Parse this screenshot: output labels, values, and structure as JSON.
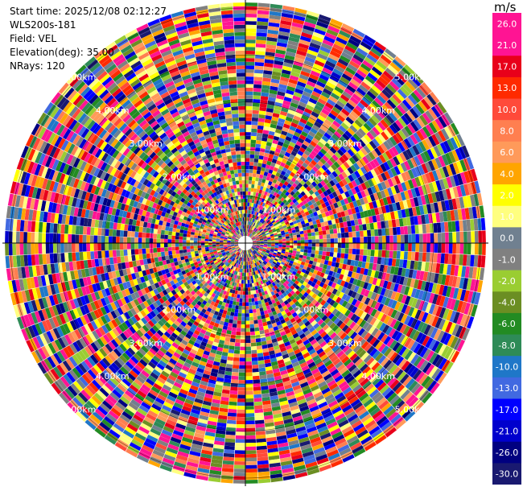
{
  "header": {
    "start_time": "Start time: 2025/12/08 02:12:27",
    "instrument": "WLS200s-181",
    "field": "Field: VEL",
    "elevation": "Elevation(deg): 35.00",
    "nrays": "NRays: 120"
  },
  "colorbar": {
    "unit": "m/s",
    "ticks": [
      "26.0",
      "21.0",
      "17.0",
      "13.0",
      "10.0",
      "8.0",
      "6.0",
      "4.0",
      "2.0",
      "1.0",
      "0.0",
      "-1.0",
      "-2.0",
      "-4.0",
      "-6.0",
      "-8.0",
      "-10.0",
      "-13.0",
      "-17.0",
      "-21.0",
      "-26.0",
      "-30.0"
    ],
    "colors": [
      "#ff1493",
      "#ff1493",
      "#e8001a",
      "#ff2a00",
      "#ff4a3a",
      "#ff7f50",
      "#ff9a5a",
      "#ffa500",
      "#ffff00",
      "#ffff7f",
      "#708090",
      "#808080",
      "#9acd32",
      "#6b8e23",
      "#228b22",
      "#2e8b57",
      "#1f77c8",
      "#4169e1",
      "#0000ff",
      "#0000cd",
      "#000080",
      "#191970"
    ]
  },
  "chart_data": {
    "type": "heatmap",
    "projection": "polar-ppi",
    "field": "VEL",
    "elevation_deg": 35.0,
    "nrays": 120,
    "range_rings_km": [
      1.0,
      2.0,
      3.0,
      4.0,
      5.0
    ],
    "range_labels": [
      "1.00km",
      "2.00km",
      "3.00km",
      "4.00km",
      "5.00km"
    ],
    "value_range": [
      -30.0,
      26.0
    ]
  }
}
